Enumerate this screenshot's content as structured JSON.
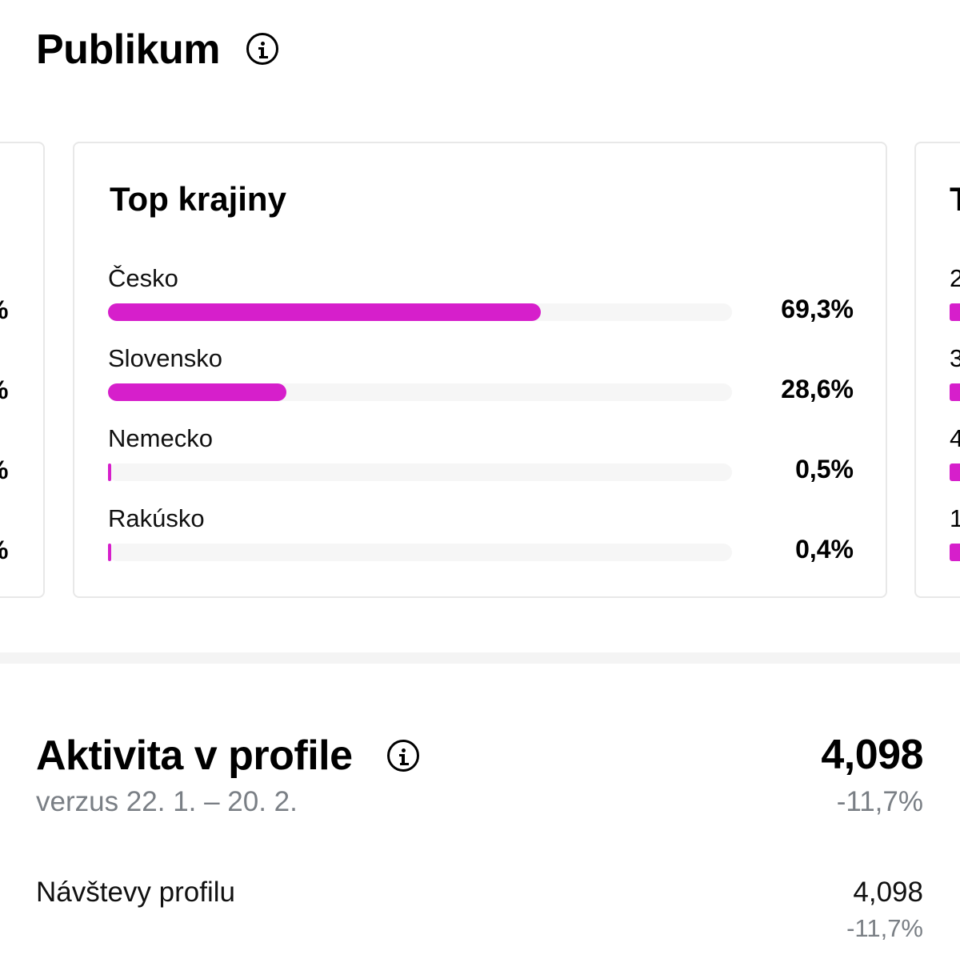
{
  "header": {
    "title": "Publikum",
    "info_icon": "info-circle-icon"
  },
  "colors": {
    "accent_bar": "#d61fcb",
    "track": "#f6f6f6",
    "muted_text": "#7a7f85"
  },
  "cards": {
    "left_peek": {
      "values": [
        "%",
        "%",
        "%",
        "%"
      ]
    },
    "main": {
      "title": "Top krajiny",
      "rows": [
        {
          "label": "Česko",
          "value_text": "69,3%",
          "percent": 69.3
        },
        {
          "label": "Slovensko",
          "value_text": "28,6%",
          "percent": 28.6
        },
        {
          "label": "Nemecko",
          "value_text": "0,5%",
          "percent": 0.5
        },
        {
          "label": "Rakúsko",
          "value_text": "0,4%",
          "percent": 0.4
        }
      ]
    },
    "right_peek": {
      "title": "T",
      "labels": [
        "2",
        "3",
        "4",
        "1"
      ]
    }
  },
  "activity": {
    "title": "Aktivita v profile",
    "info_icon": "info-circle-icon",
    "compare_text": "verzus 22. 1. – 20. 2.",
    "total": "4,098",
    "total_change": "-11,7%",
    "rows": [
      {
        "label": "Návštevy profilu",
        "value": "4,098",
        "change": "-11,7%"
      }
    ]
  }
}
